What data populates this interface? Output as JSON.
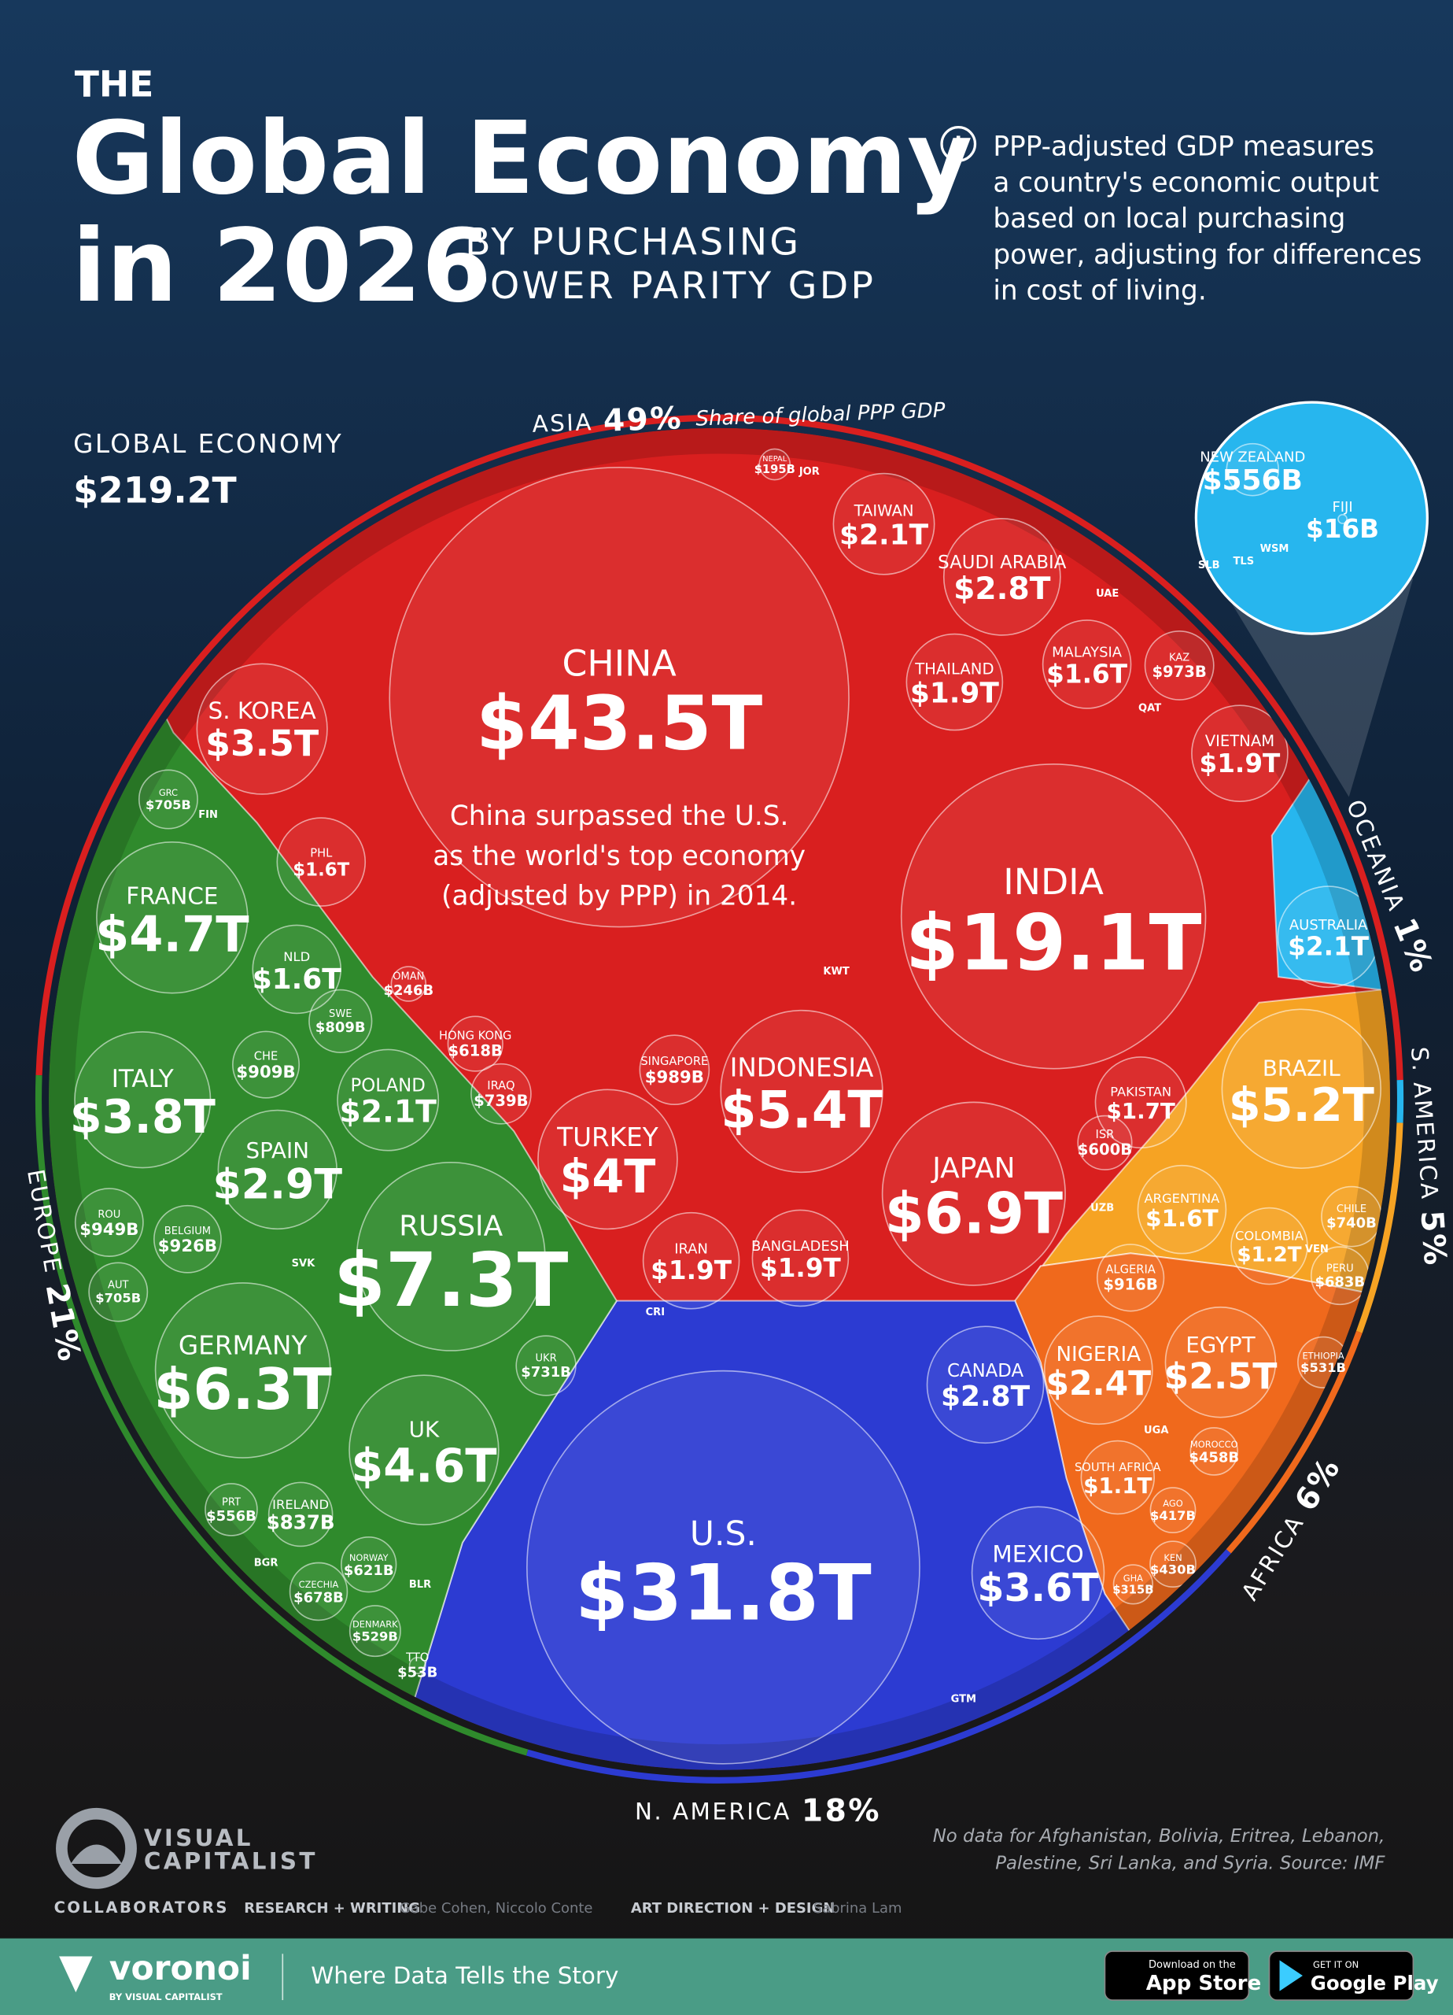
{
  "header": {
    "kicker": "THE",
    "title_lines": [
      "Global Economy",
      "in 2026"
    ],
    "subtitle_lines": [
      "BY PURCHASING",
      "POWER PARITY GDP"
    ],
    "info_lines": [
      "PPP-adjusted GDP measures",
      "a country's economic output",
      "based on local purchasing",
      "power, adjusting for differences",
      "in cost of living."
    ],
    "global_label": "GLOBAL ECONOMY",
    "global_total": "$219.2T"
  },
  "chart_data": {
    "type": "voronoi",
    "share_caption": "Share of global PPP GDP",
    "annotation_lines": [
      "China surpassed the U.S.",
      "as the world's top economy",
      "(adjusted by PPP) in 2014."
    ],
    "regions": [
      {
        "name": "ASIA",
        "share": 49,
        "share_label": "49%",
        "color": "#d91f1f",
        "countries": [
          "CHINA",
          "INDIA",
          "JAPAN",
          "INDONESIA",
          "TURKEY",
          "S. KOREA",
          "SAUDI ARABIA",
          "TAIWAN",
          "THAILAND",
          "VIETNAM",
          "IRAN",
          "BANGLADESH",
          "PAKISTAN",
          "MALAYSIA",
          "PHL",
          "SINGAPORE",
          "KAZ",
          "HONG KONG",
          "ISR",
          "IRAQ",
          "OMAN",
          "NEPAL"
        ],
        "values": [
          43500,
          19100,
          6900,
          5400,
          4000,
          3500,
          2800,
          2100,
          1900,
          1900,
          1900,
          1900,
          1700,
          1600,
          1600,
          989,
          973,
          618,
          600,
          739,
          246,
          195
        ],
        "value_labels": [
          "$43.5T",
          "$19.1T",
          "$6.9T",
          "$5.4T",
          "$4T",
          "$3.5T",
          "$2.8T",
          "$2.1T",
          "$1.9T",
          "$1.9T",
          "$1.9T",
          "$1.9T",
          "$1.7T",
          "$1.6T",
          "$1.6T",
          "$989B",
          "$973B",
          "$618B",
          "$600B",
          "$739B",
          "$246B",
          "$195B"
        ],
        "other_labels": [
          "JOR",
          "UAE",
          "QAT",
          "KWT",
          "UZB"
        ]
      },
      {
        "name": "OCEANIA",
        "share": 1,
        "share_label": "1%",
        "color": "#27b6ee",
        "countries": [
          "AUSTRALIA",
          "NEW ZEALAND",
          "FIJI"
        ],
        "values": [
          2100,
          556,
          16
        ],
        "value_labels": [
          "$2.1T",
          "$556B",
          "$16B"
        ],
        "other_labels": [
          "SLB",
          "TLS",
          "WSM"
        ]
      },
      {
        "name": "S. AMERICA",
        "share": 5,
        "share_label": "5%",
        "color": "#f6a323",
        "countries": [
          "BRAZIL",
          "ARGENTINA",
          "COLOMBIA",
          "CHILE",
          "PERU"
        ],
        "values": [
          5200,
          1600,
          1200,
          740,
          683
        ],
        "value_labels": [
          "$5.2T",
          "$1.6T",
          "$1.2T",
          "$740B",
          "$683B"
        ],
        "other_labels": [
          "VEN"
        ]
      },
      {
        "name": "AFRICA",
        "share": 6,
        "share_label": "6%",
        "color": "#f0691c",
        "countries": [
          "EGYPT",
          "NIGERIA",
          "SOUTH AFRICA",
          "ALGERIA",
          "ETHIOPIA",
          "MOROCCO",
          "KEN",
          "AGO",
          "GHA"
        ],
        "values": [
          2500,
          2400,
          1100,
          916,
          531,
          458,
          430,
          417,
          315
        ],
        "value_labels": [
          "$2.5T",
          "$2.4T",
          "$1.1T",
          "$916B",
          "$531B",
          "$458B",
          "$430B",
          "$417B",
          "$315B"
        ],
        "other_labels": [
          "UGA"
        ]
      },
      {
        "name": "N. AMERICA",
        "share": 18,
        "share_label": "18%",
        "color": "#2c3bd2",
        "countries": [
          "U.S.",
          "MEXICO",
          "CANADA",
          "TTO"
        ],
        "values": [
          31800,
          3600,
          2800,
          53
        ],
        "value_labels": [
          "$31.8T",
          "$3.6T",
          "$2.8T",
          "$53B"
        ],
        "other_labels": [
          "CRI",
          "GTM"
        ]
      },
      {
        "name": "EUROPE",
        "share": 21,
        "share_label": "21%",
        "color": "#2f8a2c",
        "countries": [
          "RUSSIA",
          "GERMANY",
          "FRANCE",
          "UK",
          "ITALY",
          "SPAIN",
          "POLAND",
          "NLD",
          "ROU",
          "BELGIUM",
          "CHE",
          "IRELAND",
          "SWE",
          "UKR",
          "GRC",
          "AUT",
          "CZECHIA",
          "NORWAY",
          "PRT",
          "DENMARK"
        ],
        "values": [
          7300,
          6300,
          4700,
          4600,
          3800,
          2900,
          2100,
          1600,
          949,
          926,
          909,
          837,
          809,
          731,
          705,
          705,
          678,
          621,
          556,
          529
        ],
        "value_labels": [
          "$7.3T",
          "$6.3T",
          "$4.7T",
          "$4.6T",
          "$3.8T",
          "$2.9T",
          "$2.1T",
          "$1.6T",
          "$949B",
          "$926B",
          "$909B",
          "$837B",
          "$809B",
          "$731B",
          "$705B",
          "$705B",
          "$678B",
          "$621B",
          "$556B",
          "$529B"
        ],
        "other_labels": [
          "FIN",
          "SVK",
          "BGR",
          "BLR"
        ]
      }
    ]
  },
  "footer": {
    "brand_lines": [
      "VISUAL",
      "CAPITALIST"
    ],
    "note_lines": [
      "No data for Afghanistan, Bolivia, Eritrea, Lebanon,",
      "Palestine, Sri Lanka, and Syria. Source: IMF"
    ],
    "collaborators": "COLLABORATORS",
    "research_label": "RESEARCH + WRITING",
    "research_names": "Gabe Cohen, Niccolo Conte",
    "design_label": "ART DIRECTION + DESIGN",
    "design_names": "Sabrina Lam",
    "app_name": "voronoi",
    "app_by": "BY VISUAL CAPITALIST",
    "tagline": "Where Data Tells the Story",
    "appstore_small": "Download on the",
    "appstore": "App Store",
    "googleplay_small": "GET IT ON",
    "googleplay": "Google Play"
  }
}
